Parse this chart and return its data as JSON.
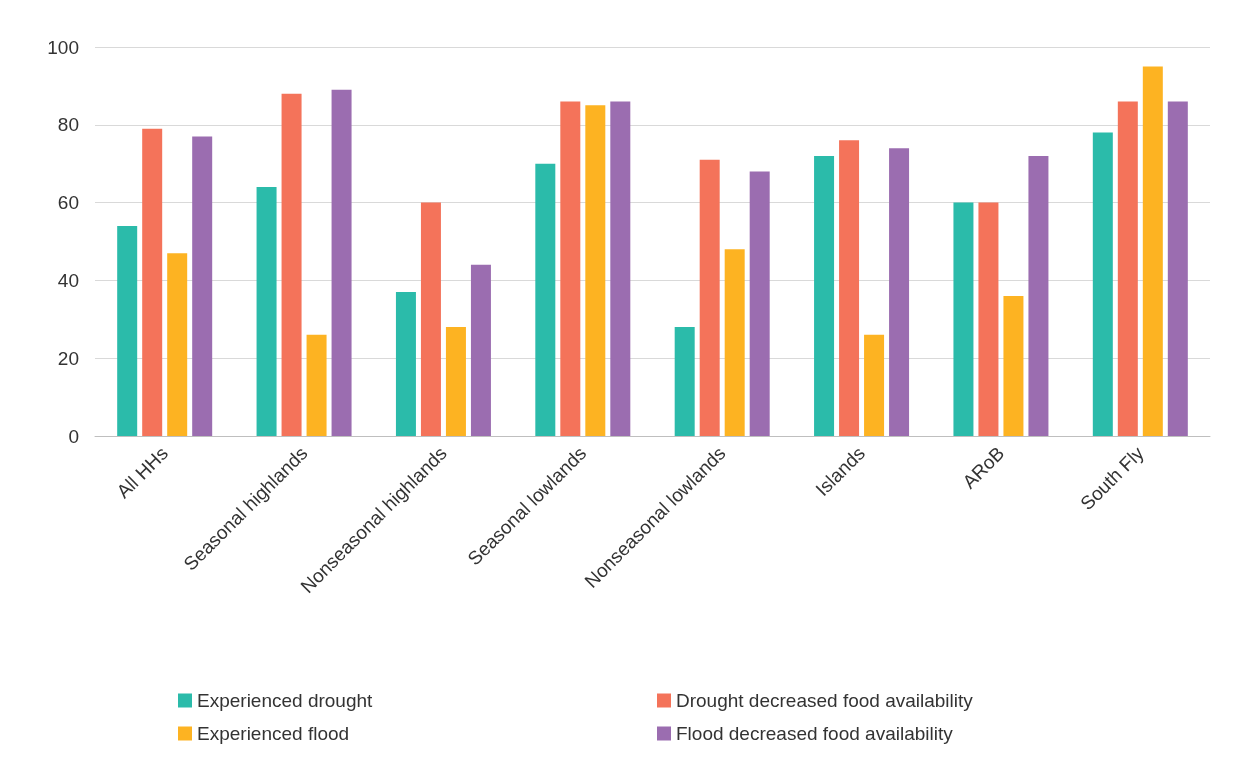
{
  "chart_data": {
    "type": "bar",
    "categories": [
      "All HHs",
      "Seasonal highlands",
      "Nonseasonal highlands",
      "Seasonal lowlands",
      "Nonseasonal lowlands",
      "Islands",
      "ARoB",
      "South Fly"
    ],
    "series": [
      {
        "name": "Experienced drought",
        "color": "#2bbbaa",
        "values": [
          54,
          64,
          37,
          70,
          28,
          72,
          60,
          78
        ]
      },
      {
        "name": "Drought decreased food availability",
        "color": "#f4735a",
        "values": [
          79,
          88,
          60,
          86,
          71,
          76,
          60,
          86
        ]
      },
      {
        "name": "Experienced flood",
        "color": "#fdb322",
        "values": [
          47,
          26,
          28,
          85,
          48,
          26,
          36,
          95
        ]
      },
      {
        "name": "Flood decreased food availability",
        "color": "#9b6db0",
        "values": [
          77,
          89,
          44,
          86,
          68,
          74,
          72,
          86
        ]
      }
    ],
    "ylim": [
      0,
      100
    ],
    "yticks": [
      0,
      20,
      40,
      60,
      80,
      100
    ],
    "grid": "y",
    "legend": "bottom"
  }
}
